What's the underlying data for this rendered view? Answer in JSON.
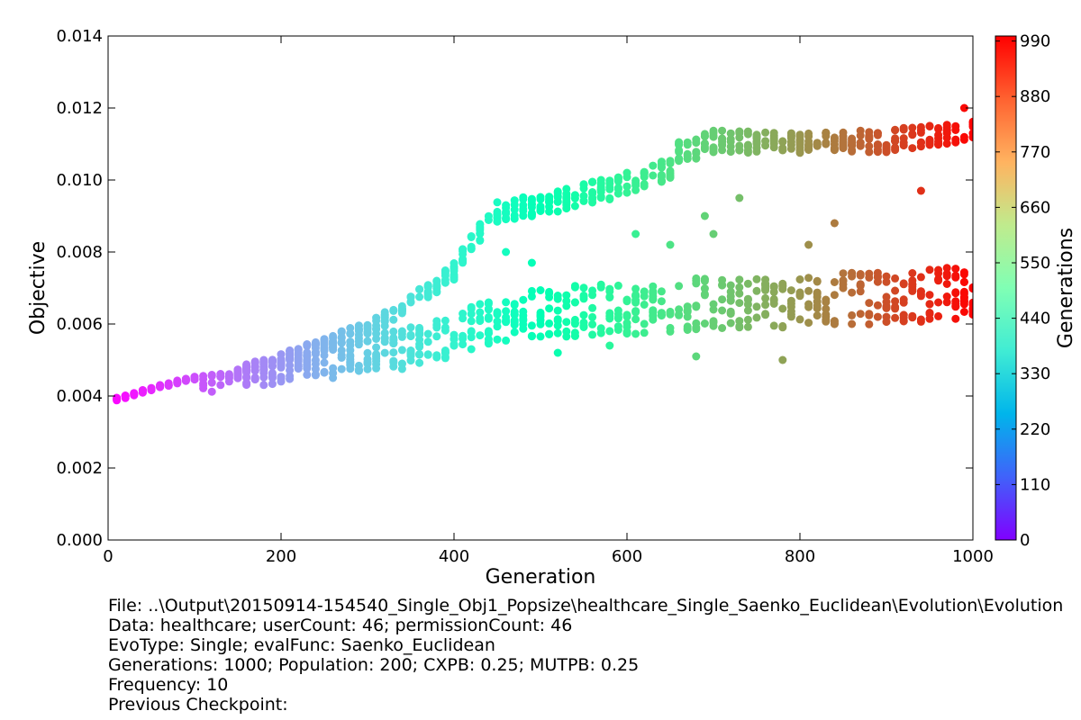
{
  "chart_data": {
    "type": "scatter",
    "xlabel": "Generation",
    "ylabel": "Objective",
    "xlim": [
      0,
      1000
    ],
    "ylim": [
      0,
      0.014
    ],
    "x_ticks": [
      "0",
      "200",
      "400",
      "600",
      "800",
      "1000"
    ],
    "y_ticks": [
      "0.000",
      "0.002",
      "0.004",
      "0.006",
      "0.008",
      "0.010",
      "0.012",
      "0.014"
    ],
    "colorbar": {
      "label": "Generations",
      "colormap": "rainbow",
      "range": [
        0,
        1000
      ],
      "ticks": [
        "0",
        "110",
        "220",
        "330",
        "440",
        "550",
        "660",
        "770",
        "880",
        "990"
      ]
    },
    "grid": false,
    "sampling_interval": 10,
    "points_per_generation": 200,
    "upper_band": {
      "x": [
        10,
        50,
        100,
        150,
        200,
        250,
        300,
        350,
        400,
        420,
        450,
        500,
        550,
        600,
        650,
        700,
        750,
        800,
        850,
        900,
        950,
        1000
      ],
      "y": [
        0.0039,
        0.0042,
        0.0045,
        0.0048,
        0.0052,
        0.0056,
        0.0061,
        0.0068,
        0.0077,
        0.0085,
        0.0094,
        0.0096,
        0.0099,
        0.0102,
        0.0106,
        0.011,
        0.011,
        0.011,
        0.011,
        0.011,
        0.0112,
        0.0113
      ]
    },
    "lower_band": {
      "x": [
        10,
        50,
        100,
        150,
        200,
        250,
        300,
        350,
        400,
        420,
        450,
        500,
        550,
        600,
        650,
        700,
        750,
        800,
        850,
        900,
        950,
        1000
      ],
      "y": [
        0.0039,
        0.0041,
        0.0043,
        0.0045,
        0.0047,
        0.005,
        0.0052,
        0.0054,
        0.0057,
        0.0059,
        0.0061,
        0.0063,
        0.0064,
        0.0064,
        0.0065,
        0.0066,
        0.0066,
        0.0066,
        0.0067,
        0.0067,
        0.0068,
        0.0069
      ]
    },
    "outliers": [
      {
        "x": 260,
        "y": 0.0045
      },
      {
        "x": 340,
        "y": 0.00475
      },
      {
        "x": 460,
        "y": 0.008
      },
      {
        "x": 490,
        "y": 0.0077
      },
      {
        "x": 520,
        "y": 0.0052
      },
      {
        "x": 610,
        "y": 0.0085
      },
      {
        "x": 650,
        "y": 0.0082
      },
      {
        "x": 690,
        "y": 0.009
      },
      {
        "x": 700,
        "y": 0.0085
      },
      {
        "x": 730,
        "y": 0.0095
      },
      {
        "x": 780,
        "y": 0.005
      },
      {
        "x": 810,
        "y": 0.0082
      },
      {
        "x": 840,
        "y": 0.0088
      },
      {
        "x": 940,
        "y": 0.0097
      },
      {
        "x": 990,
        "y": 0.012
      },
      {
        "x": 680,
        "y": 0.0051
      },
      {
        "x": 580,
        "y": 0.0054
      }
    ]
  },
  "info": {
    "file": "File: ..\\Output\\20150914-154540_Single_Obj1_Popsize\\healthcare_Single_Saenko_Euclidean\\Evolution\\Evolution",
    "data": "Data: healthcare; userCount: 46; permissionCount: 46",
    "evotype": "EvoType: Single; evalFunc: Saenko_Euclidean",
    "generations": "Generations: 1000; Population: 200; CXPB: 0.25; MUTPB: 0.25",
    "frequency": "Frequency: 10",
    "previous_checkpoint": "Previous Checkpoint:"
  }
}
